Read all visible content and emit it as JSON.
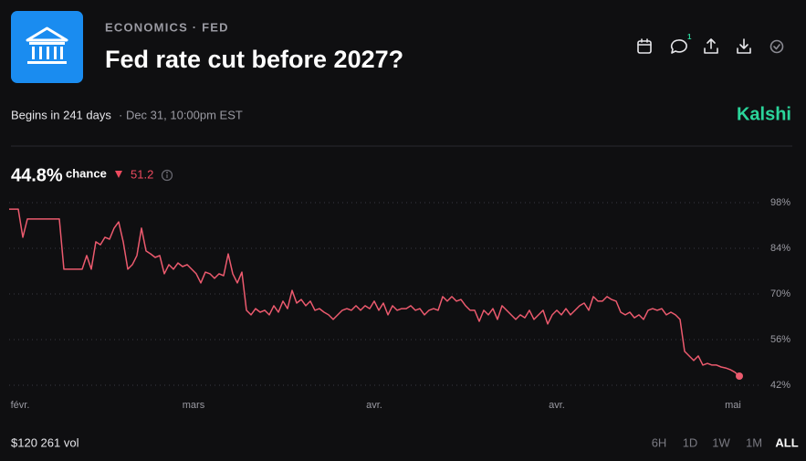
{
  "header": {
    "category": "ECONOMICS · FED",
    "title": "Fed rate cut before 2027?",
    "comment_count": "1"
  },
  "schedule": {
    "begins": "Begins in 241 days",
    "date": "· Dec 31, 10:00pm EST"
  },
  "brand": "Kalshi",
  "stats": {
    "chance_value": "44.8%",
    "chance_label": "chance",
    "change": "51.2",
    "volume": "$120 261 vol"
  },
  "range_buttons": [
    "6H",
    "1D",
    "1W",
    "1M",
    "ALL"
  ],
  "chart_data": {
    "type": "line",
    "color": "#ec5a6e",
    "values": [
      96,
      96,
      96,
      87.4,
      93,
      93,
      93,
      93,
      93,
      93,
      93,
      93,
      77.6,
      77.6,
      77.6,
      77.6,
      77.6,
      81.8,
      77.6,
      86.0,
      85.1,
      87.4,
      86.8,
      90.2,
      92.1,
      86.0,
      77.6,
      79.0,
      81.8,
      90.2,
      83.2,
      82.3,
      81.2,
      81.8,
      76.2,
      79.0,
      77.6,
      79.5,
      78.4,
      79.0,
      77.6,
      76.2,
      73.4,
      76.7,
      76.2,
      74.8,
      76.2,
      75.6,
      82.3,
      76.2,
      73.4,
      76.7,
      65.0,
      63.6,
      65.5,
      64.4,
      65.0,
      63.6,
      66.4,
      64.4,
      67.8,
      65.5,
      71.1,
      67.2,
      68.3,
      66.4,
      67.8,
      65.0,
      65.5,
      64.4,
      63.6,
      62.2,
      63.6,
      65.0,
      65.5,
      65.0,
      66.4,
      65.0,
      66.4,
      65.5,
      67.8,
      65.0,
      67.2,
      63.6,
      66.4,
      65.0,
      65.5,
      65.5,
      66.4,
      65.0,
      65.5,
      63.6,
      65.0,
      65.5,
      65.0,
      69.2,
      67.8,
      69.2,
      67.8,
      68.3,
      66.4,
      65.0,
      65.0,
      61.6,
      65.0,
      63.6,
      65.5,
      62.2,
      66.4,
      65.0,
      63.6,
      62.2,
      63.6,
      62.7,
      65.0,
      62.2,
      63.6,
      65.0,
      60.8,
      63.6,
      65.0,
      63.6,
      65.5,
      63.6,
      65.0,
      66.4,
      67.2,
      65.0,
      69.2,
      67.8,
      67.8,
      69.2,
      68.3,
      67.8,
      64.4,
      63.6,
      64.4,
      62.7,
      63.6,
      62.2,
      65.0,
      65.5,
      65.0,
      65.5,
      63.6,
      64.4,
      63.6,
      62.2,
      52.4,
      51.0,
      49.6,
      51.0,
      48.2,
      48.7,
      48.2,
      48.2,
      47.6,
      47.3,
      46.8,
      46.0,
      44.8
    ],
    "xlim": [
      0,
      160
    ],
    "xticks": [
      {
        "value": 2.4,
        "label": "févr."
      },
      {
        "value": 40.4,
        "label": "mars"
      },
      {
        "value": 80,
        "label": "avr."
      },
      {
        "value": 120,
        "label": "avr."
      },
      {
        "value": 158.6,
        "label": "mai"
      }
    ],
    "ylim": [
      42,
      98
    ],
    "yticks": [
      {
        "value": 98,
        "label": "98%"
      },
      {
        "value": 84,
        "label": "84%"
      },
      {
        "value": 70,
        "label": "70%"
      },
      {
        "value": 56,
        "label": "56%"
      },
      {
        "value": 42,
        "label": "42%"
      }
    ],
    "grid": true
  }
}
